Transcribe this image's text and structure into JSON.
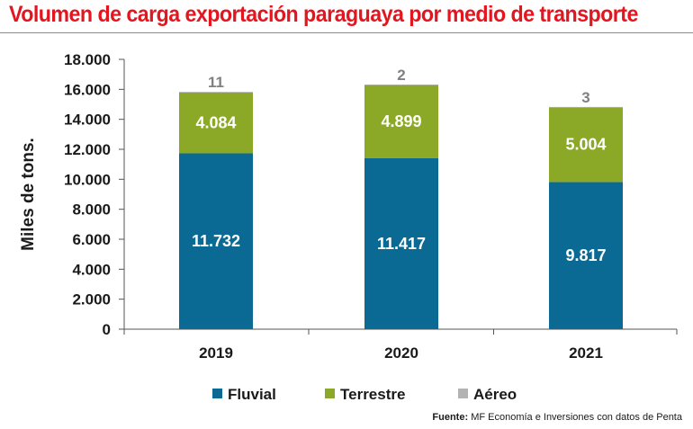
{
  "title": "Volumen de carga exportación paraguaya por medio de transporte",
  "source": {
    "label": "Fuente:",
    "text": "MF Economía e Inversiones con datos de Penta"
  },
  "colors": {
    "title": "#e3161f",
    "Fluvial": "#0a6a94",
    "Terrestre": "#8ba827",
    "Aéreo": "#b3b3b3"
  },
  "chart_data": {
    "type": "bar",
    "stacked": true,
    "title": "Volumen de carga exportación paraguaya por medio de transporte",
    "xlabel": "",
    "ylabel": "Miles de tons.",
    "ylim": [
      0,
      18000
    ],
    "yticks": [
      0,
      2000,
      4000,
      6000,
      8000,
      10000,
      12000,
      14000,
      16000,
      18000
    ],
    "ytick_labels": [
      "0",
      "2.000",
      "4.000",
      "6.000",
      "8.000",
      "10.000",
      "12.000",
      "14.000",
      "16.000",
      "18.000"
    ],
    "categories": [
      "2019",
      "2020",
      "2021"
    ],
    "grid": false,
    "legend_position": "bottom",
    "series": [
      {
        "name": "Fluvial",
        "values": [
          11732,
          11417,
          9817
        ],
        "labels": [
          "11.732",
          "11.417",
          "9.817"
        ]
      },
      {
        "name": "Terrestre",
        "values": [
          4084,
          4899,
          5004
        ],
        "labels": [
          "4.084",
          "4.899",
          "5.004"
        ]
      },
      {
        "name": "Aéreo",
        "values": [
          11,
          2,
          3
        ],
        "labels": [
          "11",
          "2",
          "3"
        ]
      }
    ]
  }
}
